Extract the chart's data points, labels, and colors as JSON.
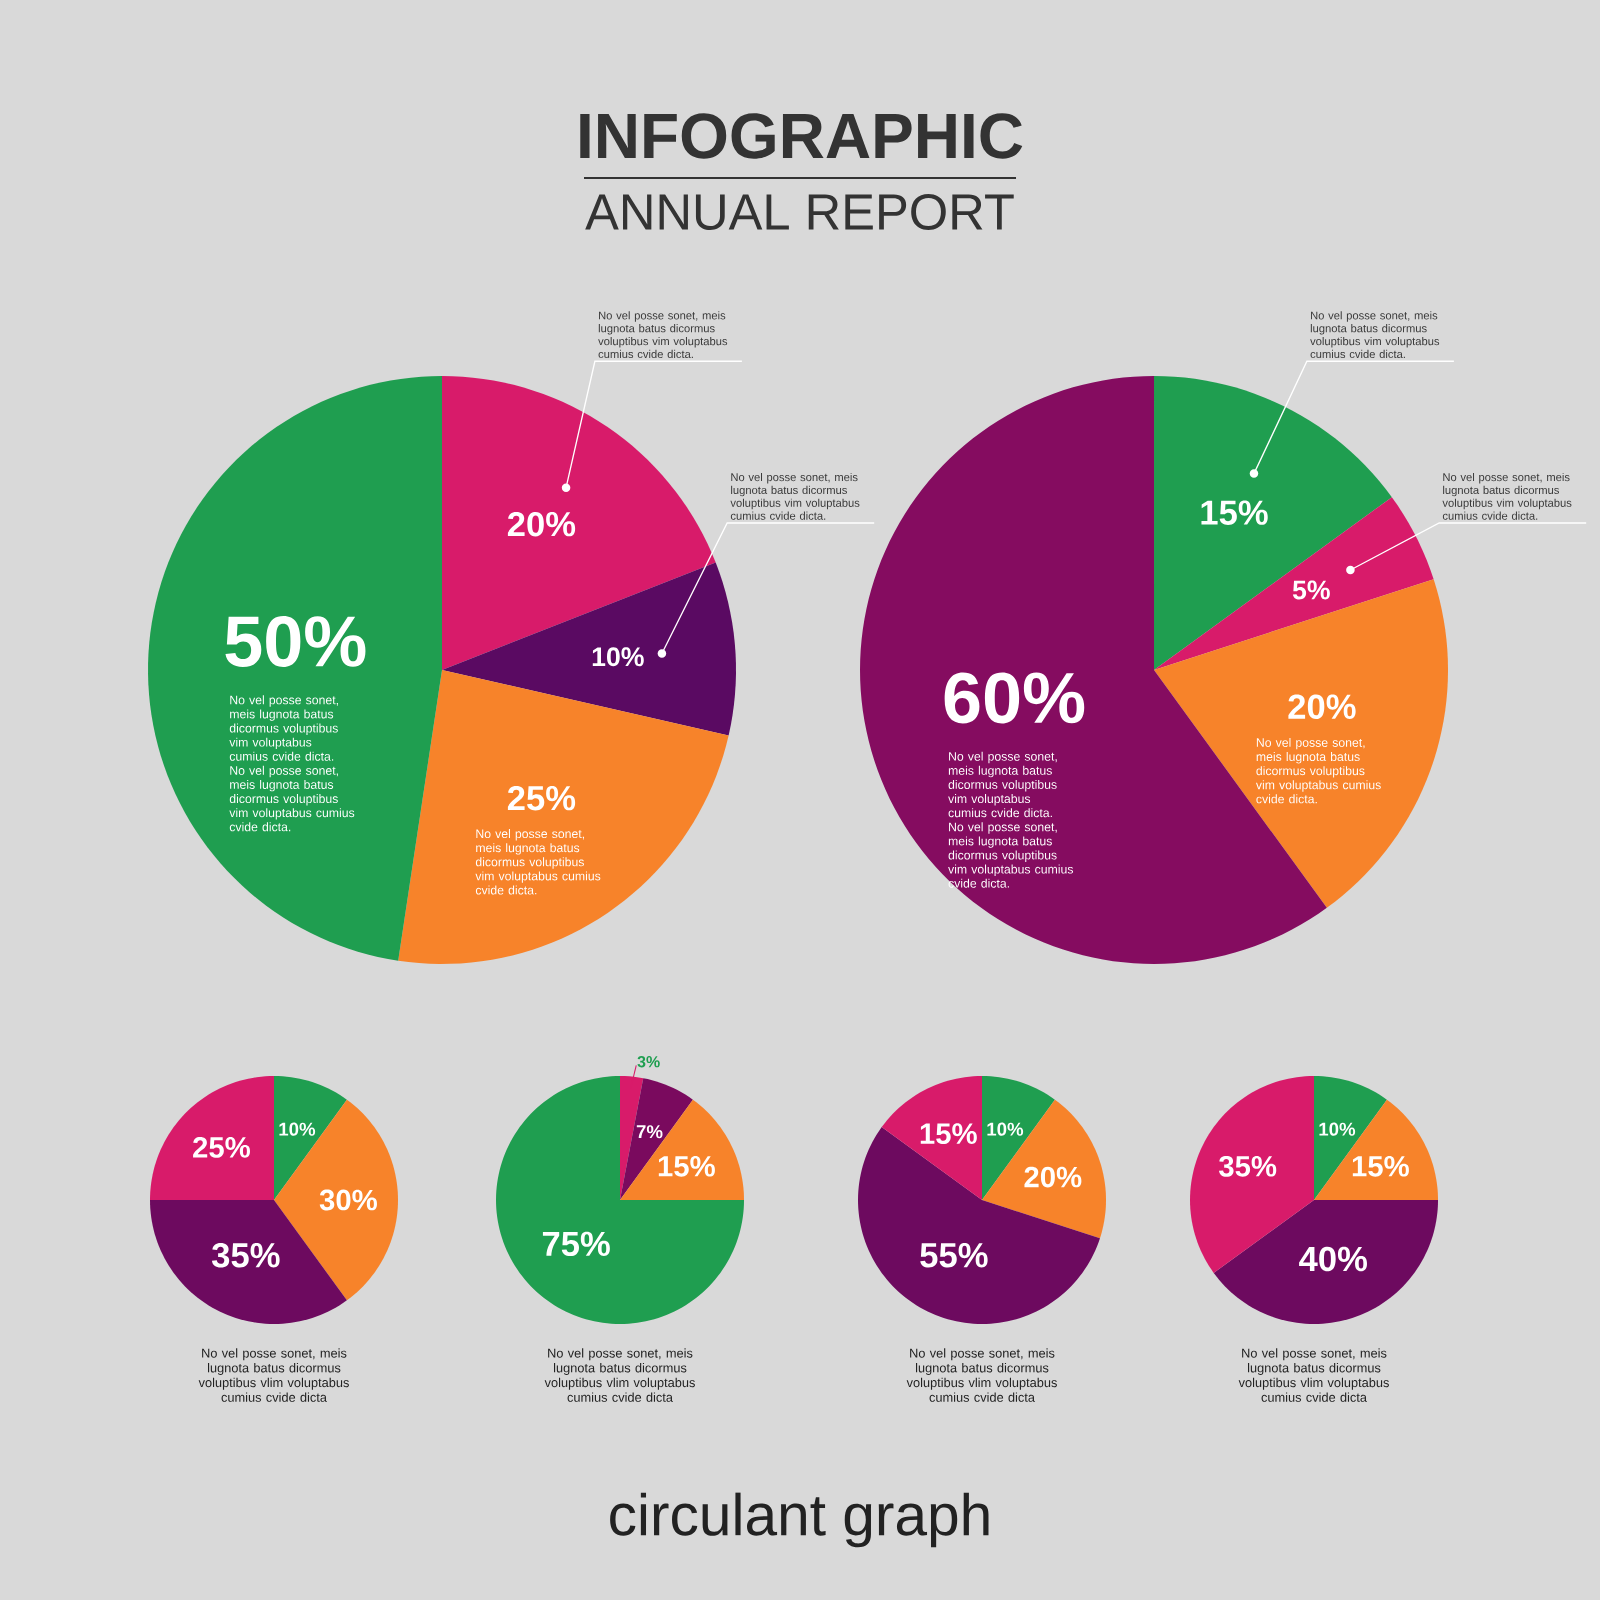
{
  "chart_data": [
    {
      "type": "other",
      "title": "INFOGRAPHIC",
      "subtitle": "ANNUAL REPORT",
      "annotations": [
        "circulant graph"
      ]
    },
    {
      "type": "pie",
      "categories": [
        null,
        null,
        null,
        null
      ],
      "values": [
        20,
        10,
        25,
        50
      ],
      "value_labels": [
        "20%",
        "10%",
        "25%",
        "50%"
      ],
      "colors": [
        "#d81b6a",
        "#5a0a62",
        "#f7832a",
        "#1f9e50"
      ],
      "annotations": [
        "No vel posse sonet, meis lugnota batus dicormus voluptibus vim voluptabus cumius cvide dicta.",
        "No vel posse sonet, meis lugnota batus dicormus voluptibus vim voluptabus cumius cvide dicta.",
        "No vel posse sonet, meis lugnota batus dicormus voluptibus vim voluptabus cumius cvide dicta. No vel posse sonet, meis lugnota batus dicormus voluptibus vim voluptabus cumius cvide dicta.",
        "No vel posse sonet, meis lugnota batus dicormus voluptibus vim voluptabus cumius cvide dicta."
      ]
    },
    {
      "type": "pie",
      "categories": [
        null,
        null,
        null,
        null
      ],
      "values": [
        15,
        5,
        20,
        60
      ],
      "value_labels": [
        "15%",
        "5%",
        "20%",
        "60%"
      ],
      "colors": [
        "#1f9e50",
        "#d81b6a",
        "#f7832a",
        "#850c60"
      ],
      "annotations": [
        "No vel posse sonet, meis lugnota batus dicormus voluptibus vim voluptabus cumius cvide dicta.",
        "No vel posse sonet, meis lugnota batus dicormus voluptibus vim voluptabus cumius cvide dicta.",
        "No vel posse sonet, meis lugnota batus dicormus voluptibus vim voluptabus cumius cvide dicta. No vel posse sonet, meis lugnota batus dicormus voluptibus vim voluptabus cumius cvide dicta.",
        "No vel posse sonet, meis lugnota batus dicormus voluptibus vim voluptabus cumius cvide dicta."
      ]
    },
    {
      "type": "pie",
      "categories": [
        null,
        null,
        null,
        null
      ],
      "values": [
        10,
        30,
        35,
        25
      ],
      "value_labels": [
        "10%",
        "30%",
        "35%",
        "25%"
      ],
      "colors": [
        "#1f9e50",
        "#f7832a",
        "#6d0a5f",
        "#d81b6a"
      ],
      "annotations": [
        "No vel posse sonet, meis lugnota batus dicormus voluptibus vlim voluptabus cumius cvide dicta"
      ]
    },
    {
      "type": "pie",
      "categories": [
        null,
        null,
        null,
        null
      ],
      "values": [
        3,
        7,
        15,
        75
      ],
      "value_labels": [
        "3%",
        "7%",
        "15%",
        "75%"
      ],
      "colors": [
        "#d81b6a",
        "#7a0a5e",
        "#f7832a",
        "#1f9e50"
      ],
      "annotations": [
        "No vel posse sonet, meis lugnota batus dicormus voluptibus vlim voluptabus cumius cvide dicta"
      ]
    },
    {
      "type": "pie",
      "categories": [
        null,
        null,
        null,
        null
      ],
      "values": [
        10,
        20,
        55,
        15
      ],
      "value_labels": [
        "10%",
        "20%",
        "55%",
        "15%"
      ],
      "colors": [
        "#1f9e50",
        "#f7832a",
        "#6d0a5f",
        "#d81b6a"
      ],
      "annotations": [
        "No vel posse sonet, meis lugnota batus dicormus voluptibus vlim voluptabus cumius cvide dicta"
      ]
    },
    {
      "type": "pie",
      "categories": [
        null,
        null,
        null,
        null
      ],
      "values": [
        10,
        15,
        40,
        35
      ],
      "value_labels": [
        "10%",
        "15%",
        "40%",
        "35%"
      ],
      "colors": [
        "#1f9e50",
        "#f7832a",
        "#6d0a5f",
        "#d81b6a"
      ],
      "annotations": [
        "No vel posse sonet, meis lugnota batus dicormus voluptibus vlim voluptabus cumius cvide dicta"
      ]
    }
  ]
}
